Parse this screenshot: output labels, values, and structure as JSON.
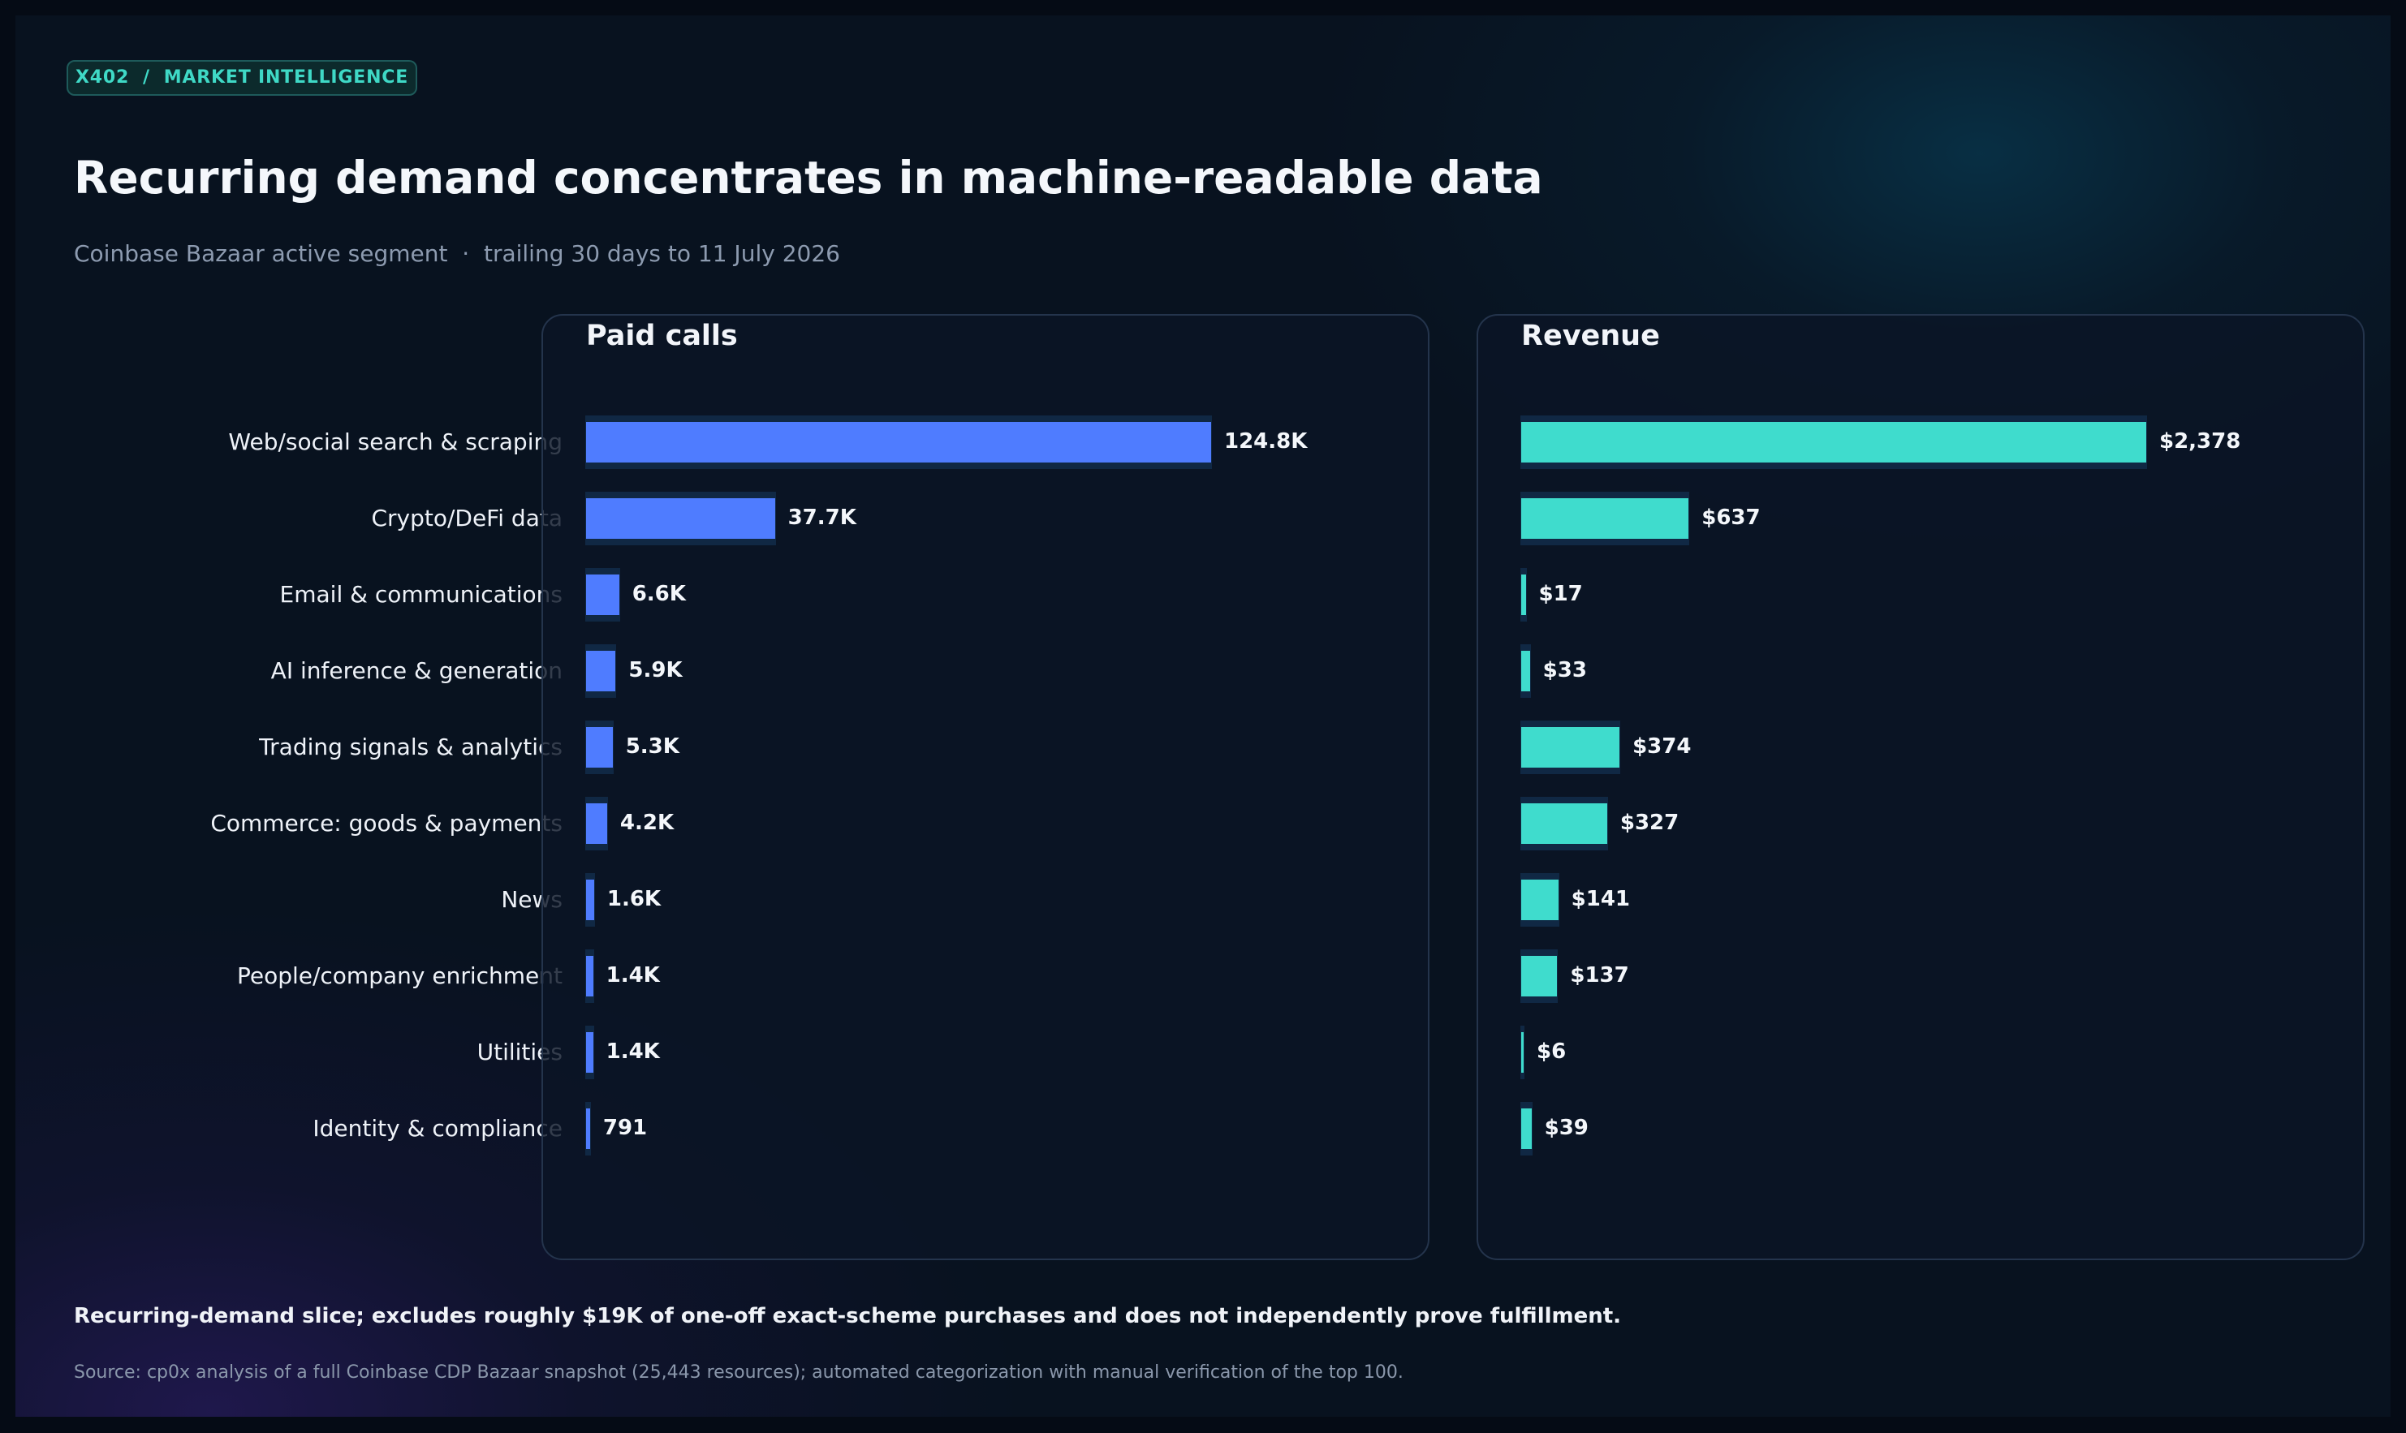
{
  "tag": "X402  /  MARKET INTELLIGENCE",
  "title": "Recurring demand concentrates in machine-readable data",
  "subtitle": "Coinbase Bazaar active segment  ·  trailing 30 days to 11 July 2026",
  "footnote": "Recurring-demand slice; excludes roughly $19K of one-off exact-scheme purchases and does not independently prove fulfillment.",
  "source": "Source: cp0x analysis of a full Coinbase CDP Bazaar snapshot (25,443 resources); automated categorization with manual verification of the top 100.",
  "colors": {
    "calls_bar": "#4f7cff",
    "revenue_bar": "#3fdccd",
    "accent": "#3fd9c6"
  },
  "chart_data": [
    {
      "type": "bar",
      "orientation": "horizontal",
      "title": "Paid calls",
      "categories": [
        "Web/social search & scraping",
        "Crypto/DeFi data",
        "Email & communications",
        "AI inference & generation",
        "Trading signals & analytics",
        "Commerce: goods & payments",
        "News",
        "People/company enrichment",
        "Utilities",
        "Identity & compliance"
      ],
      "values": [
        124800,
        37700,
        6600,
        5900,
        5300,
        4200,
        1600,
        1400,
        1400,
        791
      ],
      "labels": [
        "124.8K",
        "37.7K",
        "6.6K",
        "5.9K",
        "5.3K",
        "4.2K",
        "1.6K",
        "1.4K",
        "1.4K",
        "791"
      ],
      "xlim": [
        0,
        124800
      ],
      "grid": false
    },
    {
      "type": "bar",
      "orientation": "horizontal",
      "title": "Revenue",
      "categories": [
        "Web/social search & scraping",
        "Crypto/DeFi data",
        "Email & communications",
        "AI inference & generation",
        "Trading signals & analytics",
        "Commerce: goods & payments",
        "News",
        "People/company enrichment",
        "Utilities",
        "Identity & compliance"
      ],
      "values": [
        2378,
        637,
        17,
        33,
        374,
        327,
        141,
        137,
        6,
        39
      ],
      "labels": [
        "$2,378",
        "$637",
        "$17",
        "$33",
        "$374",
        "$327",
        "$141",
        "$137",
        "$6",
        "$39"
      ],
      "xlim": [
        0,
        2378
      ],
      "grid": false
    }
  ]
}
